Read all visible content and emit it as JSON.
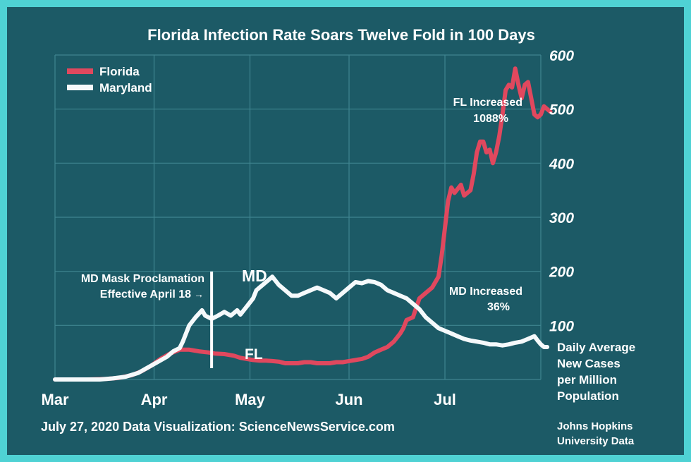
{
  "chart_data": {
    "type": "line",
    "title": "Florida Infection Rate Soars Twelve Fold in 100 Days",
    "ylabel_lines": [
      "Daily Average",
      "New Cases",
      "per Million",
      "Population"
    ],
    "x_ticks": [
      "Mar",
      "Apr",
      "May",
      "Jun",
      "Jul"
    ],
    "x_tick_days": [
      0,
      31,
      61,
      92,
      122
    ],
    "y_ticks": [
      100,
      200,
      300,
      400,
      500,
      600
    ],
    "ylim": [
      0,
      600
    ],
    "xlim": [
      0,
      152
    ],
    "grid": true,
    "legend_position": "top-left",
    "series": [
      {
        "name": "Florida",
        "label": "FL",
        "color": "#e0485e",
        "points": [
          [
            0,
            0
          ],
          [
            10,
            0
          ],
          [
            16,
            1
          ],
          [
            20,
            3
          ],
          [
            24,
            8
          ],
          [
            27,
            15
          ],
          [
            30,
            25
          ],
          [
            33,
            38
          ],
          [
            36,
            48
          ],
          [
            39,
            55
          ],
          [
            42,
            55
          ],
          [
            45,
            52
          ],
          [
            48,
            50
          ],
          [
            50,
            48
          ],
          [
            53,
            47
          ],
          [
            56,
            44
          ],
          [
            58,
            40
          ],
          [
            60,
            38
          ],
          [
            62,
            36
          ],
          [
            64,
            35
          ],
          [
            66,
            35
          ],
          [
            68,
            34
          ],
          [
            70,
            33
          ],
          [
            72,
            30
          ],
          [
            74,
            30
          ],
          [
            76,
            30
          ],
          [
            78,
            32
          ],
          [
            80,
            32
          ],
          [
            82,
            30
          ],
          [
            84,
            30
          ],
          [
            86,
            30
          ],
          [
            88,
            32
          ],
          [
            90,
            32
          ],
          [
            92,
            34
          ],
          [
            94,
            36
          ],
          [
            96,
            38
          ],
          [
            98,
            42
          ],
          [
            100,
            50
          ],
          [
            102,
            55
          ],
          [
            104,
            60
          ],
          [
            106,
            70
          ],
          [
            108,
            85
          ],
          [
            109,
            95
          ],
          [
            110,
            110
          ],
          [
            112,
            115
          ],
          [
            114,
            150
          ],
          [
            116,
            160
          ],
          [
            118,
            170
          ],
          [
            120,
            190
          ],
          [
            121,
            230
          ],
          [
            122,
            280
          ],
          [
            123,
            330
          ],
          [
            124,
            355
          ],
          [
            125,
            345
          ],
          [
            127,
            360
          ],
          [
            128,
            340
          ],
          [
            130,
            350
          ],
          [
            131,
            380
          ],
          [
            132,
            420
          ],
          [
            133,
            440
          ],
          [
            134,
            440
          ],
          [
            135,
            420
          ],
          [
            136,
            425
          ],
          [
            137,
            400
          ],
          [
            138,
            420
          ],
          [
            139,
            450
          ],
          [
            140,
            490
          ],
          [
            141,
            535
          ],
          [
            142,
            545
          ],
          [
            143,
            540
          ],
          [
            144,
            575
          ],
          [
            145,
            545
          ],
          [
            146,
            520
          ],
          [
            147,
            545
          ],
          [
            148,
            550
          ],
          [
            149,
            520
          ],
          [
            150,
            490
          ],
          [
            151,
            485
          ],
          [
            152,
            490
          ],
          [
            153,
            505
          ],
          [
            154,
            500
          ],
          [
            155,
            495
          ]
        ]
      },
      {
        "name": "Maryland",
        "label": "MD",
        "color": "#f5f9fb",
        "points": [
          [
            0,
            0
          ],
          [
            10,
            0
          ],
          [
            14,
            0
          ],
          [
            18,
            2
          ],
          [
            22,
            5
          ],
          [
            26,
            12
          ],
          [
            29,
            22
          ],
          [
            32,
            32
          ],
          [
            35,
            42
          ],
          [
            37,
            52
          ],
          [
            39,
            58
          ],
          [
            40,
            70
          ],
          [
            41,
            85
          ],
          [
            42,
            100
          ],
          [
            44,
            115
          ],
          [
            46,
            128
          ],
          [
            47,
            118
          ],
          [
            49,
            112
          ],
          [
            51,
            118
          ],
          [
            53,
            125
          ],
          [
            55,
            118
          ],
          [
            57,
            128
          ],
          [
            58,
            120
          ],
          [
            60,
            135
          ],
          [
            62,
            150
          ],
          [
            63,
            165
          ],
          [
            64,
            170
          ],
          [
            66,
            180
          ],
          [
            68,
            190
          ],
          [
            70,
            175
          ],
          [
            72,
            165
          ],
          [
            74,
            155
          ],
          [
            76,
            155
          ],
          [
            78,
            160
          ],
          [
            80,
            165
          ],
          [
            82,
            170
          ],
          [
            84,
            165
          ],
          [
            86,
            160
          ],
          [
            88,
            150
          ],
          [
            90,
            160
          ],
          [
            92,
            170
          ],
          [
            94,
            180
          ],
          [
            96,
            178
          ],
          [
            98,
            182
          ],
          [
            100,
            180
          ],
          [
            102,
            175
          ],
          [
            104,
            165
          ],
          [
            106,
            160
          ],
          [
            108,
            155
          ],
          [
            110,
            150
          ],
          [
            112,
            140
          ],
          [
            114,
            130
          ],
          [
            116,
            115
          ],
          [
            118,
            105
          ],
          [
            120,
            95
          ],
          [
            122,
            90
          ],
          [
            124,
            85
          ],
          [
            126,
            80
          ],
          [
            128,
            75
          ],
          [
            130,
            72
          ],
          [
            132,
            70
          ],
          [
            134,
            68
          ],
          [
            136,
            65
          ],
          [
            138,
            65
          ],
          [
            140,
            63
          ],
          [
            142,
            65
          ],
          [
            144,
            68
          ],
          [
            146,
            70
          ],
          [
            148,
            75
          ],
          [
            150,
            80
          ],
          [
            151,
            72
          ],
          [
            152,
            65
          ],
          [
            153,
            60
          ],
          [
            154,
            60
          ]
        ]
      }
    ],
    "annotations": {
      "fl_increase_line1": "FL Increased",
      "fl_increase_line2": "1088%",
      "md_increase_line1": "MD Increased",
      "md_increase_line2": "36%",
      "mask_line1": "MD Mask Proclamation",
      "mask_line2": "Effective April 18",
      "mask_arrow": "→",
      "mask_day": 49
    },
    "footer_left": "July 27, 2020 Data Visualization: ScienceNewsService.com",
    "footer_right_lines": [
      "Johns Hopkins",
      "University Data"
    ]
  }
}
